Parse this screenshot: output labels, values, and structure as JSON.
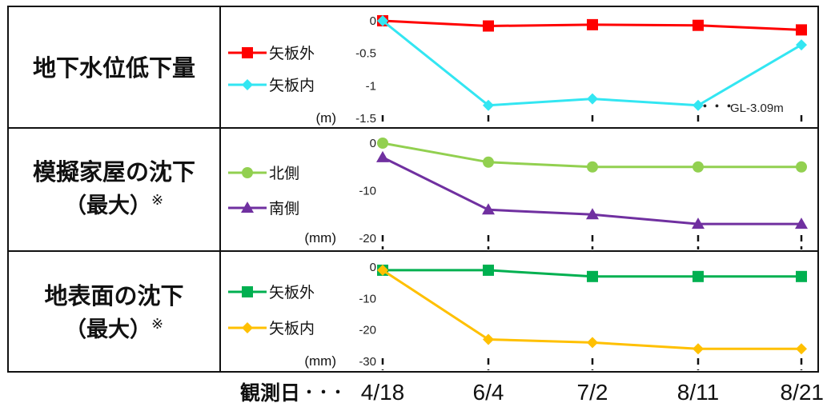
{
  "x_axis": {
    "label": "観測日",
    "dots": "・・・",
    "categories": [
      "4/18",
      "6/4",
      "7/2",
      "8/11",
      "8/21"
    ]
  },
  "chart_data": [
    {
      "type": "line",
      "panel_title": "地下水位低下量",
      "panel_title_note": "",
      "unit": "(m)",
      "ylim": [
        -1.5,
        0
      ],
      "yticks": [
        0,
        -0.5,
        -1,
        -1.5
      ],
      "ytick_labels": [
        "0",
        "-0.5",
        "-1",
        "-1.5"
      ],
      "categories": [
        "4/18",
        "6/4",
        "7/2",
        "8/11",
        "8/21"
      ],
      "series": [
        {
          "name": "矢板外",
          "color": "#ff0000",
          "marker": "square",
          "values": [
            0,
            -0.08,
            -0.06,
            -0.07,
            -0.14
          ]
        },
        {
          "name": "矢板内",
          "color": "#33e6f2",
          "marker": "diamond",
          "values": [
            0,
            -1.3,
            -1.2,
            -1.3,
            -0.37
          ]
        }
      ],
      "annotation": "GL-3.09m",
      "annotation_dots": "・・・"
    },
    {
      "type": "line",
      "panel_title": "模擬家屋の沈下",
      "panel_title_line2": "（最大）",
      "panel_title_note": "※",
      "unit": "(mm)",
      "ylim": [
        -20,
        0
      ],
      "yticks": [
        0,
        -10,
        -20
      ],
      "ytick_labels": [
        "0",
        "-10",
        "-20"
      ],
      "categories": [
        "4/18",
        "6/4",
        "7/2",
        "8/11",
        "8/21"
      ],
      "series": [
        {
          "name": "北側",
          "color": "#92d050",
          "marker": "circle",
          "values": [
            0,
            -4,
            -5,
            -5,
            -5
          ]
        },
        {
          "name": "南側",
          "color": "#7030a0",
          "marker": "triangle",
          "values": [
            -3,
            -14,
            -15,
            -17,
            -17
          ]
        }
      ]
    },
    {
      "type": "line",
      "panel_title": "地表面の沈下",
      "panel_title_line2": "（最大）",
      "panel_title_note": "※",
      "unit": "(mm)",
      "ylim": [
        -30,
        0
      ],
      "yticks": [
        0,
        -10,
        -20,
        -30
      ],
      "ytick_labels": [
        "0",
        "-10",
        "-20",
        "-30"
      ],
      "categories": [
        "4/18",
        "6/4",
        "7/2",
        "8/11",
        "8/21"
      ],
      "series": [
        {
          "name": "矢板外",
          "color": "#00b050",
          "marker": "square",
          "values": [
            -1,
            -1,
            -3,
            -3,
            -3
          ]
        },
        {
          "name": "矢板内",
          "color": "#ffc000",
          "marker": "diamond",
          "values": [
            -1,
            -23,
            -24,
            -26,
            -26
          ]
        }
      ]
    }
  ]
}
